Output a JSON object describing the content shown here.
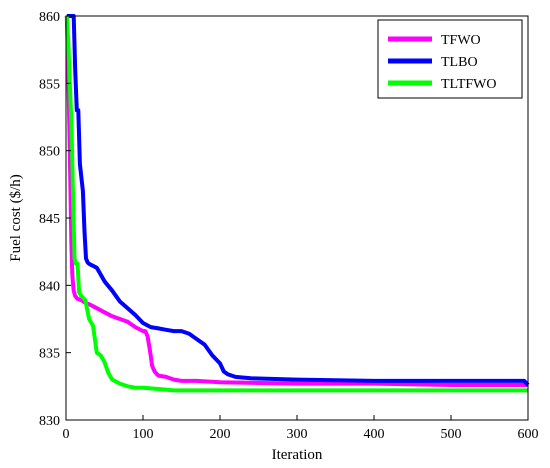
{
  "chart_data": {
    "type": "line",
    "title": "",
    "xlabel": "Iteration",
    "ylabel": "Fuel cost ($/h)",
    "xlim": [
      0,
      600
    ],
    "ylim": [
      830,
      860
    ],
    "xticks": [
      0,
      100,
      200,
      300,
      400,
      500,
      600
    ],
    "yticks": [
      830,
      835,
      840,
      845,
      850,
      855,
      860
    ],
    "xtick_labels": [
      "0",
      "100",
      "200",
      "300",
      "400",
      "500",
      "600"
    ],
    "ytick_labels": [
      "830",
      "835",
      "840",
      "845",
      "850",
      "855",
      "860"
    ],
    "grid": false,
    "legend_position": "top-right",
    "series": [
      {
        "name": "TFWO",
        "color": "#ff00ff",
        "x": [
          1,
          3,
          5,
          7,
          8,
          9,
          10,
          12,
          15,
          20,
          25,
          30,
          40,
          50,
          60,
          70,
          80,
          90,
          100,
          103,
          106,
          108,
          110,
          112,
          115,
          118,
          120,
          130,
          140,
          150,
          170,
          200,
          300,
          400,
          500,
          600
        ],
        "y": [
          860,
          856,
          850,
          843,
          841,
          840.2,
          839.6,
          839.2,
          839.0,
          838.9,
          838.7,
          838.6,
          838.3,
          838.0,
          837.7,
          837.5,
          837.3,
          836.9,
          836.6,
          836.6,
          836.2,
          835.5,
          834.8,
          834.0,
          833.6,
          833.4,
          833.3,
          833.2,
          833.0,
          832.9,
          832.9,
          832.8,
          832.7,
          832.7,
          832.6,
          832.6
        ]
      },
      {
        "name": "TLBO",
        "color": "#0000ff",
        "x": [
          1,
          5,
          8,
          10,
          12,
          14,
          16,
          18,
          20,
          22,
          24,
          26,
          28,
          30,
          40,
          50,
          60,
          70,
          80,
          90,
          100,
          110,
          120,
          130,
          140,
          150,
          160,
          170,
          180,
          190,
          200,
          205,
          210,
          220,
          240,
          300,
          400,
          500,
          595,
          600
        ],
        "y": [
          860,
          860,
          860,
          860,
          856,
          853,
          853,
          849,
          848,
          847,
          844,
          842,
          841.7,
          841.6,
          841.3,
          840.3,
          839.6,
          838.8,
          838.3,
          837.8,
          837.2,
          836.9,
          836.8,
          836.7,
          836.6,
          836.6,
          836.4,
          836.0,
          835.6,
          834.8,
          834.2,
          833.6,
          833.4,
          833.2,
          833.1,
          833.0,
          832.9,
          832.9,
          832.9,
          832.6
        ]
      },
      {
        "name": "TLTFWO",
        "color": "#00ff00",
        "x": [
          1,
          3,
          5,
          7,
          9,
          11,
          13,
          15,
          17,
          20,
          25,
          30,
          35,
          40,
          45,
          50,
          55,
          60,
          70,
          80,
          90,
          100,
          120,
          140,
          200,
          300,
          400,
          500,
          600
        ],
        "y": [
          860,
          858,
          855,
          852,
          847,
          842,
          841.6,
          841.6,
          839.5,
          839.2,
          838.9,
          837.5,
          837.0,
          835.0,
          834.8,
          834.3,
          833.5,
          833.0,
          832.7,
          832.5,
          832.4,
          832.4,
          832.3,
          832.2,
          832.2,
          832.2,
          832.2,
          832.2,
          832.2
        ]
      }
    ]
  }
}
